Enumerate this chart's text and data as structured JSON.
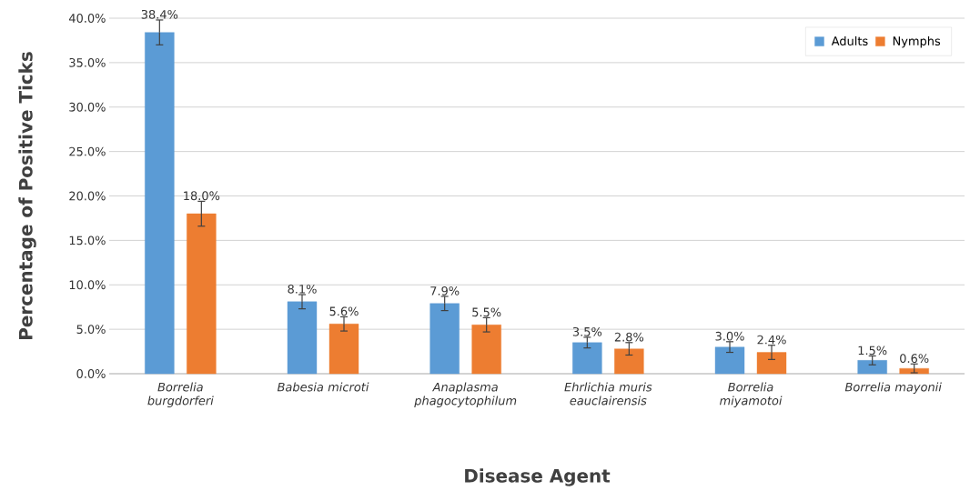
{
  "chart_data": {
    "type": "bar",
    "xlabel": "Disease Agent",
    "ylabel": "Percentage of Positive Ticks",
    "categories": [
      "Borrelia burgdorferi",
      "Babesia microti",
      "Anaplasma phagocytophilum",
      "Ehrlichia muris eauclairensis",
      "Borrelia miyamotoi",
      "Borrelia mayonii"
    ],
    "series": [
      {
        "name": "Adults",
        "color": "#5b9bd5",
        "values": [
          38.4,
          8.1,
          7.9,
          3.5,
          3.0,
          1.5
        ],
        "errors": [
          1.4,
          0.8,
          0.8,
          0.6,
          0.6,
          0.5
        ],
        "value_labels": [
          "38.4%",
          "8.1%",
          "7.9%",
          "3.5%",
          "3.0%",
          "1.5%"
        ]
      },
      {
        "name": "Nymphs",
        "color": "#ed7d31",
        "values": [
          18.0,
          5.6,
          5.5,
          2.8,
          2.4,
          0.6
        ],
        "errors": [
          1.4,
          0.8,
          0.8,
          0.7,
          0.8,
          0.5
        ],
        "value_labels": [
          "18.0%",
          "5.6%",
          "5.5%",
          "2.8%",
          "2.4%",
          "0.6%"
        ]
      }
    ],
    "ylim": [
      0,
      40
    ],
    "yticks": [
      {
        "value": 0,
        "label": "0.0%"
      },
      {
        "value": 5,
        "label": "5.0%"
      },
      {
        "value": 10,
        "label": "10.0%"
      },
      {
        "value": 15,
        "label": "15.0%"
      },
      {
        "value": 20,
        "label": "20.0%"
      },
      {
        "value": 25,
        "label": "25.0%"
      },
      {
        "value": 30,
        "label": "30.0%"
      },
      {
        "value": 35,
        "label": "35.0%"
      },
      {
        "value": 40,
        "label": "40.0%"
      }
    ],
    "grid": "y",
    "legend": "top right"
  }
}
